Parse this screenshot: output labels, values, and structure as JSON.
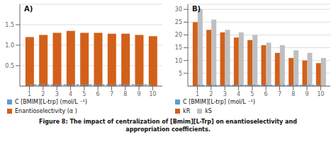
{
  "chart_data": [
    {
      "type": "bar",
      "title": "A)",
      "x": [
        1,
        2,
        3,
        4,
        5,
        6,
        7,
        8,
        9,
        10
      ],
      "xlim": [
        0.3,
        10.7
      ],
      "xticks": [
        1,
        2,
        3,
        4,
        5,
        6,
        7,
        8,
        9,
        10
      ],
      "ylim": [
        0,
        2.0
      ],
      "yticks": [
        0.5,
        {
          "value": 1.0,
          "label": "1.0"
        },
        1.5
      ],
      "grid": true,
      "series": [
        {
          "name": "Enantioselectivity (α )",
          "type": "bar",
          "color": "#D2601A",
          "values": [
            1.2,
            1.25,
            1.3,
            1.35,
            1.3,
            1.3,
            1.28,
            1.28,
            1.25,
            1.22
          ]
        },
        {
          "name": "C [BMIM][L-trp] (mol/L ⁻¹)",
          "type": "line",
          "line_style": "dashed",
          "color": "#5B9BD5",
          "values": [
            0.03,
            0.03,
            0.03,
            0.03,
            0.03,
            0.03,
            0.03,
            0.03,
            0.03,
            0.03
          ]
        }
      ]
    },
    {
      "type": "bar",
      "title": "B)",
      "x": [
        1,
        2,
        3,
        4,
        5,
        6,
        7,
        8,
        9,
        10
      ],
      "xlim": [
        0.3,
        10.7
      ],
      "xticks": [
        1,
        2,
        3,
        4,
        5,
        6,
        7,
        8,
        9,
        10
      ],
      "ylim": [
        0,
        32
      ],
      "yticks": [
        5,
        10,
        15,
        20,
        25,
        30
      ],
      "grid": true,
      "series": [
        {
          "name": "kR",
          "type": "bar",
          "color": "#D2601A",
          "values": [
            25,
            22,
            21,
            19,
            18,
            16,
            13,
            11,
            10,
            9
          ]
        },
        {
          "name": "kS",
          "type": "bar",
          "color": "#BFBFBF",
          "values": [
            30,
            26,
            22,
            21,
            20,
            17,
            16,
            14,
            13,
            11
          ]
        },
        {
          "name": "C [BMIM][L-trp] (mol/L ⁻¹)",
          "type": "line",
          "line_style": "dashed",
          "color": "#5B9BD5",
          "values": [
            0.3,
            0.3,
            0.3,
            0.3,
            0.3,
            0.3,
            0.3,
            0.3,
            0.3,
            0.3
          ]
        }
      ]
    }
  ],
  "caption": [
    "Figure 8: The impact of centralization of [Bmim][L-Trp] on enantioselectivity and",
    "appropriation coefficients."
  ]
}
